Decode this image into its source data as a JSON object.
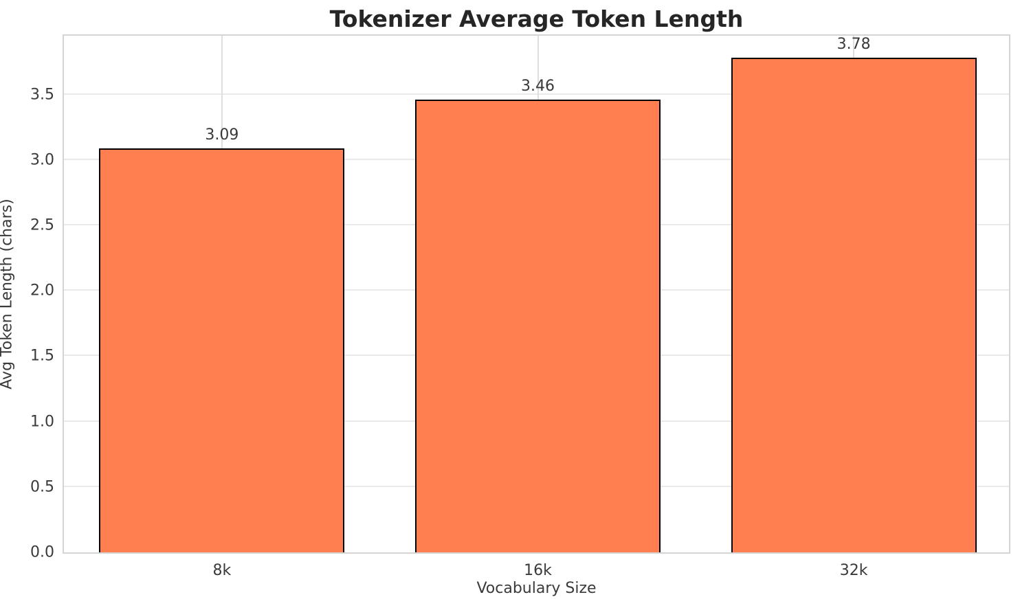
{
  "chart_data": {
    "type": "bar",
    "title": "Tokenizer Average Token Length",
    "xlabel": "Vocabulary Size",
    "ylabel": "Avg Token Length (chars)",
    "categories": [
      "8k",
      "16k",
      "32k"
    ],
    "values": [
      3.09,
      3.46,
      3.78
    ],
    "value_labels": [
      "3.09",
      "3.46",
      "3.78"
    ],
    "yticks": [
      0.0,
      0.5,
      1.0,
      1.5,
      2.0,
      2.5,
      3.0,
      3.5
    ],
    "ylim": [
      0,
      3.97
    ],
    "grid": true,
    "legend_position": "none",
    "colors": {
      "bar_fill": "#FF7F50",
      "bar_edge": "#000000",
      "hgrid": "#e9e9e9",
      "vgrid": "#dedede",
      "spine": "#d4d4d4",
      "text": "#3a3a3a",
      "title_text": "#262626",
      "background": "#ffffff"
    }
  }
}
